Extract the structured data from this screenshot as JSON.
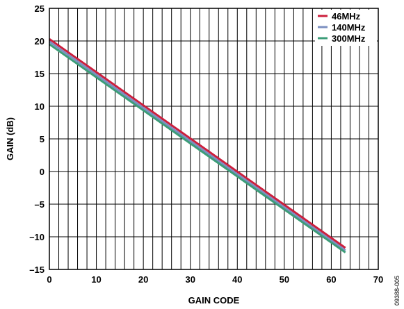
{
  "chart_data": {
    "type": "line",
    "xlabel": "GAIN CODE",
    "ylabel": "GAIN (dB)",
    "xlim": [
      0,
      70
    ],
    "ylim": [
      -15,
      25
    ],
    "x_ticks": [
      "0",
      "10",
      "20",
      "30",
      "40",
      "50",
      "60",
      "70"
    ],
    "y_ticks": [
      "25",
      "20",
      "15",
      "10",
      "5",
      "0",
      "–5",
      "–10",
      "–15"
    ],
    "grid": true,
    "legend_position": "top-right",
    "series": [
      {
        "name": "46MHz",
        "color": "#cc1f3d",
        "x": [
          0,
          63
        ],
        "y": [
          20.3,
          -11.7
        ]
      },
      {
        "name": "140MHz",
        "color": "#7b8fc0",
        "x": [
          0,
          63
        ],
        "y": [
          19.9,
          -12.1
        ]
      },
      {
        "name": "300MHz",
        "color": "#3c9d78",
        "x": [
          0,
          63
        ],
        "y": [
          19.5,
          -12.4
        ]
      }
    ]
  },
  "figure_id": "09388-005"
}
